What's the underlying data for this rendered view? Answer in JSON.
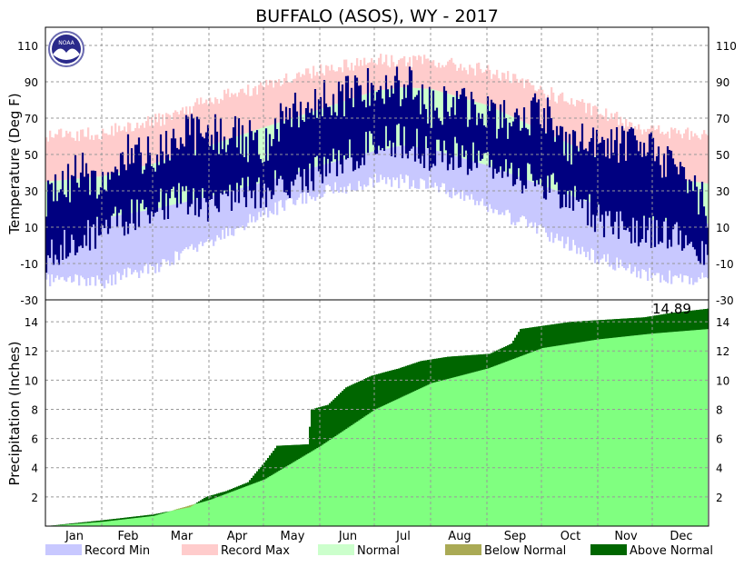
{
  "title": "BUFFALO (ASOS), WY - 2017",
  "colors": {
    "record_min": "#c8c8ff",
    "record_max": "#ffcccc",
    "normal": "#ccffcc",
    "observed": "#000080",
    "below_normal": "#aaaa55",
    "above_normal": "#006600",
    "normal_precip": "#80ff80",
    "grid": "#999999"
  },
  "logo": {
    "name": "noaa-logo",
    "text": "NOAA"
  },
  "chart_data": [
    {
      "type": "area",
      "panel": "temperature",
      "ylabel": "Temperature (Deg F)",
      "ylim": [
        -30,
        120
      ],
      "yticks": [
        -30,
        -10,
        10,
        30,
        50,
        70,
        90,
        110
      ],
      "grid": true,
      "x": "day of year 2017 (1-365)",
      "series": [
        {
          "name": "Record Max",
          "approx": "seasonal curve",
          "control_points": [
            [
              1,
              60
            ],
            [
              32,
              62
            ],
            [
              60,
              68
            ],
            [
              91,
              80
            ],
            [
              121,
              88
            ],
            [
              152,
              97
            ],
            [
              182,
              102
            ],
            [
              213,
              101
            ],
            [
              244,
              96
            ],
            [
              274,
              85
            ],
            [
              305,
              73
            ],
            [
              335,
              63
            ],
            [
              365,
              60
            ]
          ]
        },
        {
          "name": "Normal",
          "high_points": [
            [
              1,
              35
            ],
            [
              32,
              38
            ],
            [
              60,
              45
            ],
            [
              91,
              55
            ],
            [
              121,
              65
            ],
            [
              152,
              75
            ],
            [
              182,
              85
            ],
            [
              197,
              87
            ],
            [
              213,
              86
            ],
            [
              244,
              77
            ],
            [
              274,
              63
            ],
            [
              305,
              48
            ],
            [
              335,
              38
            ],
            [
              365,
              34
            ]
          ],
          "low_points": [
            [
              1,
              13
            ],
            [
              32,
              15
            ],
            [
              60,
              20
            ],
            [
              91,
              27
            ],
            [
              121,
              35
            ],
            [
              152,
              44
            ],
            [
              182,
              52
            ],
            [
              197,
              55
            ],
            [
              213,
              53
            ],
            [
              244,
              44
            ],
            [
              274,
              33
            ],
            [
              305,
              22
            ],
            [
              335,
              14
            ],
            [
              365,
              12
            ]
          ]
        },
        {
          "name": "Record Min",
          "approx": "seasonal curve",
          "control_points": [
            [
              1,
              -15
            ],
            [
              32,
              -16
            ],
            [
              60,
              -8
            ],
            [
              91,
              5
            ],
            [
              121,
              22
            ],
            [
              152,
              33
            ],
            [
              182,
              40
            ],
            [
              213,
              38
            ],
            [
              244,
              25
            ],
            [
              274,
              12
            ],
            [
              305,
              -3
            ],
            [
              335,
              -13
            ],
            [
              365,
              -15
            ]
          ]
        },
        {
          "name": "Observed Daily Range",
          "approx": "daily high/low bars",
          "high_points": [
            [
              1,
              25
            ],
            [
              20,
              40
            ],
            [
              32,
              35
            ],
            [
              45,
              50
            ],
            [
              60,
              52
            ],
            [
              75,
              60
            ],
            [
              91,
              62
            ],
            [
              105,
              60
            ],
            [
              121,
              55
            ],
            [
              135,
              75
            ],
            [
              152,
              80
            ],
            [
              160,
              78
            ],
            [
              182,
              90
            ],
            [
              195,
              88
            ],
            [
              205,
              87
            ],
            [
              213,
              75
            ],
            [
              225,
              78
            ],
            [
              244,
              72
            ],
            [
              258,
              68
            ],
            [
              274,
              75
            ],
            [
              290,
              55
            ],
            [
              305,
              60
            ],
            [
              320,
              55
            ],
            [
              335,
              50
            ],
            [
              350,
              45
            ],
            [
              365,
              20
            ]
          ],
          "low_points": [
            [
              1,
              -5
            ],
            [
              20,
              5
            ],
            [
              32,
              8
            ],
            [
              45,
              15
            ],
            [
              60,
              20
            ],
            [
              75,
              25
            ],
            [
              91,
              22
            ],
            [
              105,
              28
            ],
            [
              121,
              30
            ],
            [
              135,
              35
            ],
            [
              152,
              40
            ],
            [
              160,
              45
            ],
            [
              182,
              55
            ],
            [
              195,
              58
            ],
            [
              205,
              55
            ],
            [
              213,
              48
            ],
            [
              225,
              50
            ],
            [
              244,
              45
            ],
            [
              258,
              40
            ],
            [
              274,
              35
            ],
            [
              290,
              25
            ],
            [
              305,
              15
            ],
            [
              320,
              10
            ],
            [
              335,
              8
            ],
            [
              350,
              5
            ],
            [
              365,
              -8
            ]
          ]
        }
      ]
    },
    {
      "type": "area",
      "panel": "precipitation",
      "ylabel": "Precipitation (Inches)",
      "ylim": [
        0,
        15.5
      ],
      "yticks": [
        2,
        4,
        6,
        8,
        10,
        12,
        14
      ],
      "grid": true,
      "x": "day of year 2017 (1-365)",
      "annotation": "14.89",
      "series": [
        {
          "name": "Normal",
          "points": [
            [
              1,
              0.0
            ],
            [
              32,
              0.3
            ],
            [
              60,
              0.7
            ],
            [
              91,
              1.8
            ],
            [
              121,
              3.2
            ],
            [
              152,
              5.5
            ],
            [
              182,
              8.0
            ],
            [
              213,
              9.8
            ],
            [
              244,
              10.8
            ],
            [
              274,
              12.2
            ],
            [
              305,
              12.8
            ],
            [
              335,
              13.2
            ],
            [
              365,
              13.5
            ]
          ]
        },
        {
          "name": "Observed",
          "points": [
            [
              1,
              0.0
            ],
            [
              32,
              0.4
            ],
            [
              60,
              0.8
            ],
            [
              80,
              1.3
            ],
            [
              89,
              2.0
            ],
            [
              100,
              2.4
            ],
            [
              112,
              3.0
            ],
            [
              122,
              4.5
            ],
            [
              128,
              5.5
            ],
            [
              145,
              5.6
            ],
            [
              147,
              8.0
            ],
            [
              156,
              8.3
            ],
            [
              166,
              9.5
            ],
            [
              180,
              10.3
            ],
            [
              195,
              10.8
            ],
            [
              207,
              11.3
            ],
            [
              222,
              11.6
            ],
            [
              245,
              11.8
            ],
            [
              257,
              12.5
            ],
            [
              262,
              13.5
            ],
            [
              290,
              14.0
            ],
            [
              304,
              14.1
            ],
            [
              330,
              14.3
            ],
            [
              345,
              14.6
            ],
            [
              365,
              14.89
            ]
          ]
        }
      ]
    }
  ],
  "x_axis": {
    "months": [
      "Jan",
      "Feb",
      "Mar",
      "Apr",
      "May",
      "Jun",
      "Jul",
      "Aug",
      "Sep",
      "Oct",
      "Nov",
      "Dec"
    ]
  },
  "legend": [
    {
      "key": "record_min",
      "label": "Record Min"
    },
    {
      "key": "record_max",
      "label": "Record Max"
    },
    {
      "key": "normal",
      "label": "Normal"
    },
    {
      "key": "below_normal",
      "label": "Below Normal"
    },
    {
      "key": "above_normal",
      "label": "Above Normal"
    }
  ]
}
